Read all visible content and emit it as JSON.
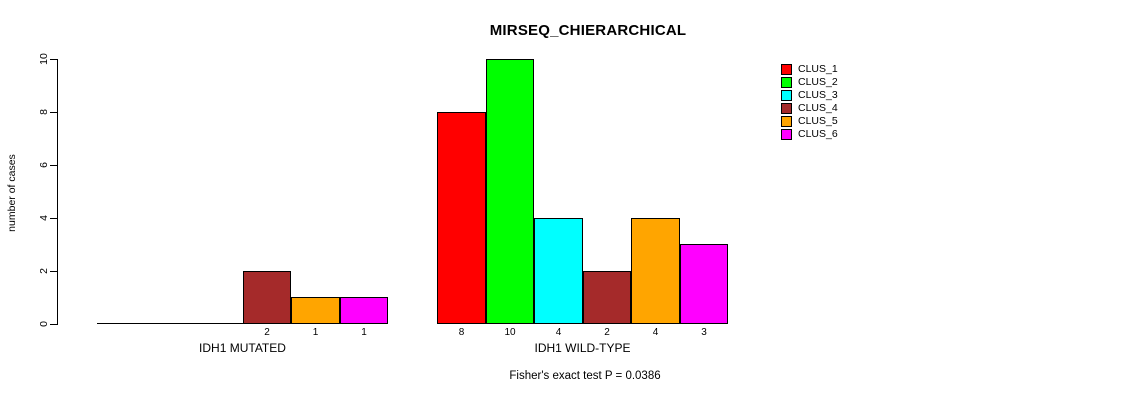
{
  "colors": {
    "background": "#FFFFFF",
    "text": "#000000",
    "axis": "#000000"
  },
  "chart_data": {
    "type": "bar",
    "title": "MIRSEQ_CHIERARCHICAL",
    "xlabel": "",
    "ylabel": "number of cases",
    "ylim": [
      0,
      10
    ],
    "yticks": [
      0,
      2,
      4,
      6,
      8,
      10
    ],
    "grid": false,
    "legend_position": "right",
    "series": [
      {
        "name": "CLUS_1",
        "color": "#FF0000"
      },
      {
        "name": "CLUS_2",
        "color": "#00FF00"
      },
      {
        "name": "CLUS_3",
        "color": "#00FFFF"
      },
      {
        "name": "CLUS_4",
        "color": "#A52A2A"
      },
      {
        "name": "CLUS_5",
        "color": "#FFA500"
      },
      {
        "name": "CLUS_6",
        "color": "#FF00FF"
      }
    ],
    "groups": [
      {
        "label": "IDH1 MUTATED",
        "values": [
          0,
          0,
          0,
          2,
          1,
          1
        ],
        "bar_value_labels": [
          "",
          "",
          "",
          "2",
          "1",
          "1"
        ]
      },
      {
        "label": "IDH1 WILD-TYPE",
        "values": [
          8,
          10,
          4,
          2,
          4,
          3
        ],
        "bar_value_labels": [
          "8",
          "10",
          "4",
          "2",
          "4",
          "3"
        ]
      }
    ],
    "annotation": "Fisher's exact test P = 0.0386"
  }
}
